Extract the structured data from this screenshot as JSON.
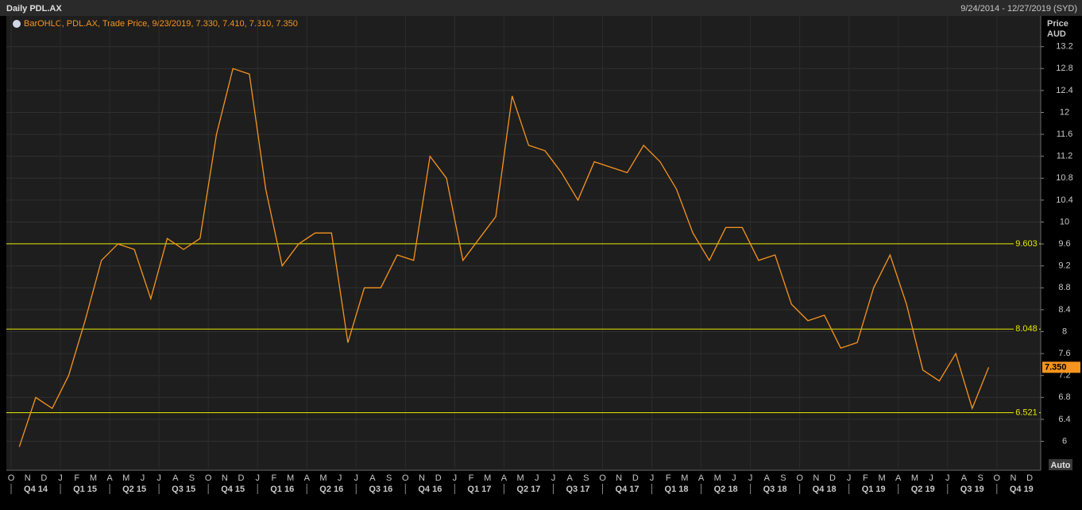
{
  "chart_data": {
    "type": "line",
    "title": "Daily PDL.AX",
    "date_range": "9/24/2014 - 12/27/2019 (SYD)",
    "legend_text": "BarOHLC, PDL.AX, Trade Price, 9/23/2019, 7.330, 7.410, 7.310, 7.350",
    "y_axis_title": "Price",
    "y_axis_unit": "AUD",
    "scale_mode": "Auto",
    "categories": [
      "O",
      "N",
      "D",
      "J",
      "F",
      "M",
      "A",
      "M",
      "J",
      "J",
      "A",
      "S",
      "O",
      "N",
      "D",
      "J",
      "F",
      "M",
      "A",
      "M",
      "J",
      "J",
      "A",
      "S",
      "O",
      "N",
      "D",
      "J",
      "F",
      "M",
      "A",
      "M",
      "J",
      "J",
      "A",
      "S",
      "O",
      "N",
      "D",
      "J",
      "F",
      "M",
      "A",
      "M",
      "J",
      "J",
      "A",
      "S",
      "O",
      "N",
      "D",
      "J",
      "F",
      "M",
      "A",
      "M",
      "J",
      "J",
      "A",
      "S",
      "O",
      "N",
      "D"
    ],
    "quarters": [
      "Q4 14",
      "Q1 15",
      "Q2 15",
      "Q3 15",
      "Q4 15",
      "Q1 16",
      "Q2 16",
      "Q3 16",
      "Q4 16",
      "Q1 17",
      "Q2 17",
      "Q3 17",
      "Q4 17",
      "Q1 18",
      "Q2 18",
      "Q3 18",
      "Q4 18",
      "Q1 19",
      "Q2 19",
      "Q3 19",
      "Q4 19"
    ],
    "series": [
      {
        "name": "PDL.AX",
        "color": "#f7941d",
        "values": [
          5.9,
          6.8,
          6.6,
          7.2,
          8.2,
          9.3,
          9.6,
          9.5,
          8.6,
          9.7,
          9.5,
          9.7,
          11.6,
          12.8,
          12.7,
          10.6,
          9.2,
          9.6,
          9.8,
          9.8,
          7.8,
          8.8,
          8.8,
          9.4,
          9.3,
          11.2,
          10.8,
          9.3,
          9.7,
          10.1,
          12.3,
          11.4,
          11.3,
          10.9,
          10.4,
          11.1,
          11.0,
          10.9,
          11.4,
          11.1,
          10.6,
          9.8,
          9.3,
          9.9,
          9.9,
          9.3,
          9.4,
          8.5,
          8.2,
          8.3,
          7.7,
          7.8,
          8.8,
          9.4,
          8.5,
          7.3,
          7.1,
          7.6,
          6.6,
          7.35,
          null,
          null,
          null
        ]
      }
    ],
    "levels": [
      9.603,
      8.048,
      6.521
    ],
    "level_color": "#e6e600",
    "last_price": {
      "value": 7.35,
      "label": "7.350"
    },
    "ylim": [
      5.5,
      13.5
    ],
    "yticks": [
      6,
      6.4,
      6.8,
      7.2,
      7.6,
      8,
      8.4,
      8.8,
      9.2,
      9.6,
      10,
      10.4,
      10.8,
      11.2,
      11.6,
      12,
      12.4,
      12.8,
      13.2
    ],
    "grid": true
  }
}
